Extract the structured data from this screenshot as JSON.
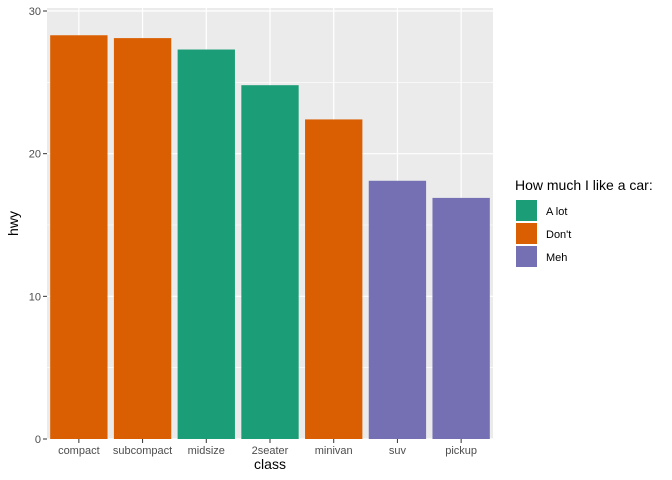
{
  "chart_data": {
    "type": "bar",
    "categories": [
      "compact",
      "subcompact",
      "midsize",
      "2seater",
      "minivan",
      "suv",
      "pickup"
    ],
    "values": [
      28.3,
      28.1,
      27.3,
      24.8,
      22.4,
      18.1,
      16.9
    ],
    "groups": [
      "Don't",
      "Don't",
      "A lot",
      "A lot",
      "Don't",
      "Meh",
      "Meh"
    ],
    "xlabel": "class",
    "ylabel": "hwy",
    "ylim": [
      0,
      30
    ],
    "yticks": [
      0,
      10,
      20,
      30
    ],
    "grid": true,
    "legend": {
      "title": "How much I like a car:",
      "position": "right",
      "entries": [
        {
          "label": "A lot",
          "color": "#1b9e77"
        },
        {
          "label": "Don't",
          "color": "#d95f02"
        },
        {
          "label": "Meh",
          "color": "#7570b3"
        }
      ]
    },
    "colors": {
      "panel": "#ebebeb",
      "grid": "#ffffff",
      "axis_text": "#4d4d4d"
    }
  }
}
